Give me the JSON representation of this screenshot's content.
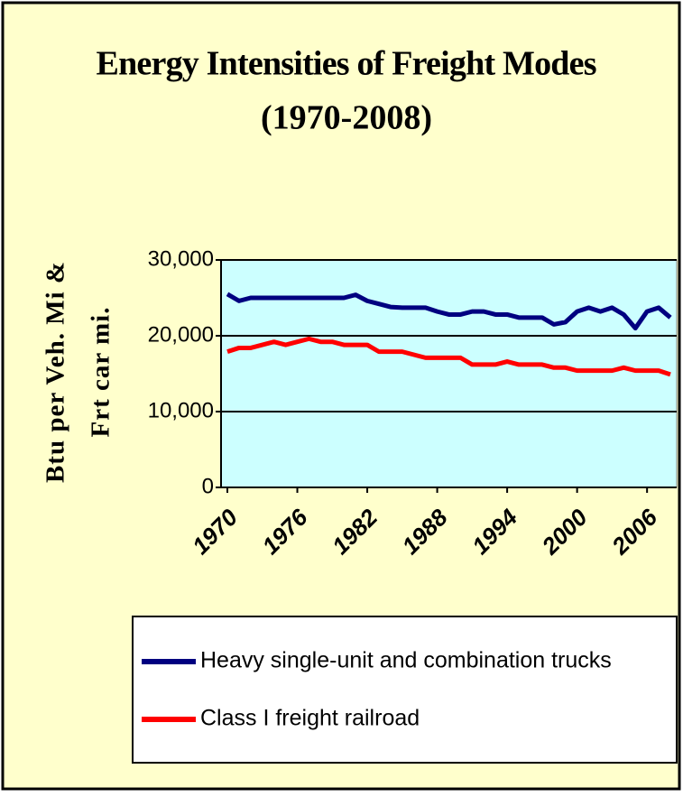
{
  "chart_data": {
    "type": "line",
    "title": [
      "Energy Intensities of Freight Modes",
      "(1970-2008)"
    ],
    "ylabel": [
      "Btu per Veh. Mi &",
      "Frt car mi."
    ],
    "x": [
      1970,
      1971,
      1972,
      1973,
      1974,
      1975,
      1976,
      1977,
      1978,
      1979,
      1980,
      1981,
      1982,
      1983,
      1984,
      1985,
      1986,
      1987,
      1988,
      1989,
      1990,
      1991,
      1992,
      1993,
      1994,
      1995,
      1996,
      1997,
      1998,
      1999,
      2000,
      2001,
      2002,
      2003,
      2004,
      2005,
      2006,
      2007,
      2008
    ],
    "xlim": [
      1970,
      2008
    ],
    "xticks": [
      1970,
      1976,
      1982,
      1988,
      1994,
      2000,
      2006
    ],
    "ylim": [
      0,
      30000
    ],
    "yticks": [
      0,
      {
        "value": 10000,
        "label": "10,000"
      },
      {
        "value": 20000,
        "label": "20,000"
      },
      {
        "value": 30000,
        "label": "30,000"
      }
    ],
    "grid": true,
    "legend": "bottom",
    "series": [
      {
        "name": "Heavy single-unit and combination trucks",
        "color": "#000080",
        "values": [
          25500,
          24600,
          25000,
          25000,
          25000,
          25000,
          25000,
          25000,
          25000,
          25000,
          25000,
          25400,
          24600,
          24200,
          23800,
          23700,
          23700,
          23700,
          23200,
          22800,
          22800,
          23200,
          23200,
          22800,
          22800,
          22400,
          22400,
          22400,
          21500,
          21800,
          23200,
          23700,
          23200,
          23700,
          22800,
          21000,
          23200,
          23700,
          22400
        ]
      },
      {
        "name": "Class I freight railroad",
        "color": "#ff0000",
        "values": [
          17900,
          18400,
          18400,
          18800,
          19200,
          18800,
          19200,
          19600,
          19200,
          19200,
          18800,
          18800,
          18800,
          17900,
          17900,
          17900,
          17500,
          17100,
          17100,
          17100,
          17100,
          16200,
          16200,
          16200,
          16600,
          16200,
          16200,
          16200,
          15800,
          15800,
          15400,
          15400,
          15400,
          15400,
          15800,
          15400,
          15400,
          15400,
          14900
        ]
      }
    ]
  }
}
